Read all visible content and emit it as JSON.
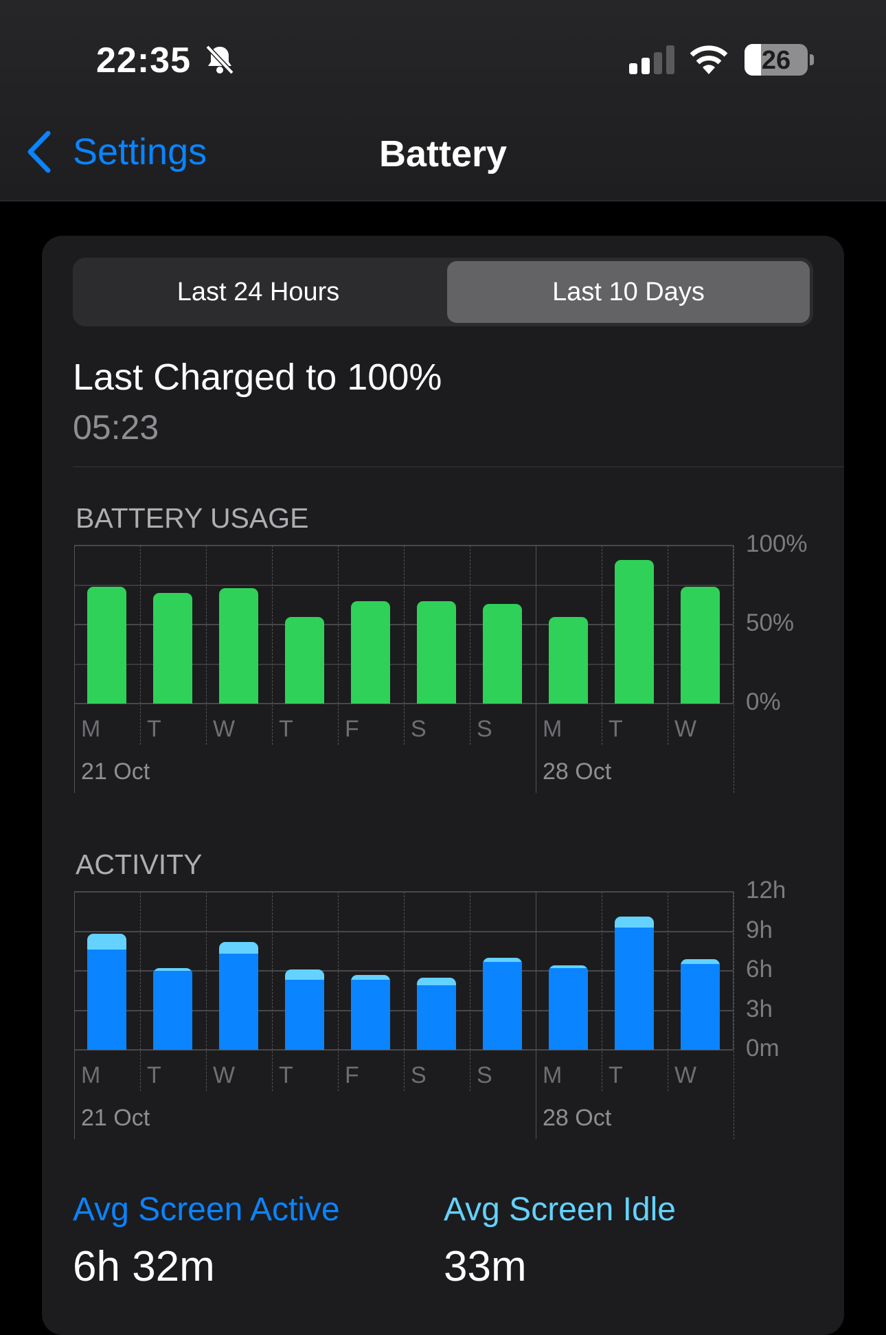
{
  "status_bar": {
    "time": "22:35",
    "battery_level": "26",
    "icons": [
      "bell-slash-icon",
      "cellular-signal-icon",
      "wifi-icon",
      "battery-icon"
    ],
    "signal_bars": 2
  },
  "nav": {
    "back_label": "Settings",
    "title": "Battery"
  },
  "segments": [
    {
      "label": "Last 24 Hours",
      "selected": false
    },
    {
      "label": "Last 10 Days",
      "selected": true
    }
  ],
  "last_charged": {
    "label": "Last Charged to 100%",
    "time": "05:23"
  },
  "colors": {
    "accent": "#0a84ff",
    "battery_green": "#30d158",
    "screen_active": "#0a84ff",
    "screen_idle": "#64d2ff"
  },
  "chart_data": [
    {
      "type": "bar",
      "title": "BATTERY USAGE",
      "categories": [
        "M",
        "T",
        "W",
        "T",
        "F",
        "S",
        "S",
        "M",
        "T",
        "W"
      ],
      "date_labels": [
        "21 Oct",
        "28 Oct"
      ],
      "yticks": [
        "100%",
        "50%",
        "0%"
      ],
      "ylim": [
        0,
        100
      ],
      "values": [
        74,
        70,
        73,
        55,
        65,
        65,
        63,
        55,
        91,
        74
      ]
    },
    {
      "type": "bar",
      "title": "ACTIVITY",
      "stacked": true,
      "categories": [
        "M",
        "T",
        "W",
        "T",
        "F",
        "S",
        "S",
        "M",
        "T",
        "W"
      ],
      "date_labels": [
        "21 Oct",
        "28 Oct"
      ],
      "yticks": [
        "12h",
        "9h",
        "6h",
        "3h",
        "0m"
      ],
      "ylim": [
        0,
        12
      ],
      "series": [
        {
          "name": "Avg Screen Active",
          "values": [
            7.6,
            6.0,
            7.3,
            5.3,
            5.3,
            4.9,
            6.7,
            6.2,
            9.3,
            6.5
          ]
        },
        {
          "name": "Avg Screen Idle",
          "values": [
            1.2,
            0.2,
            0.9,
            0.8,
            0.4,
            0.6,
            0.3,
            0.2,
            0.8,
            0.4
          ]
        }
      ]
    }
  ],
  "averages": {
    "active_label": "Avg Screen Active",
    "active_value": "6h 32m",
    "idle_label": "Avg Screen Idle",
    "idle_value": "33m"
  }
}
